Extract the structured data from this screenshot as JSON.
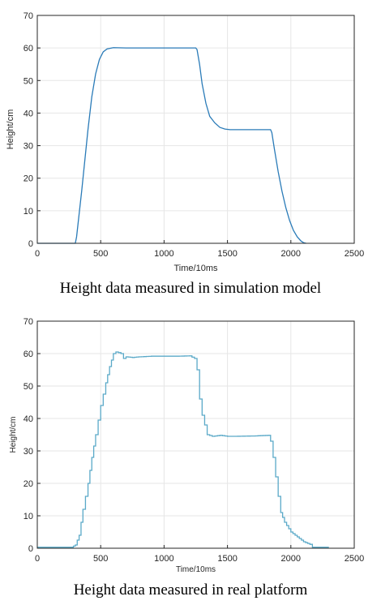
{
  "colors": {
    "line": "#2a7bb8",
    "line_real": "#5aa9c8"
  },
  "chart_data": [
    {
      "type": "line",
      "caption": "Height data measured in simulation model",
      "xlabel": "Time/10ms",
      "ylabel": "Height/cm",
      "xlim": [
        0,
        2500
      ],
      "ylim": [
        0,
        70
      ],
      "xticks": [
        0,
        500,
        1000,
        1500,
        2000,
        2500
      ],
      "yticks": [
        0,
        10,
        20,
        30,
        40,
        50,
        60,
        70
      ],
      "grid": true,
      "series": [
        {
          "x": [
            0,
            300,
            310,
            350,
            400,
            430,
            460,
            490,
            520,
            550,
            600,
            700,
            1000,
            1250,
            1260,
            1280,
            1300,
            1330,
            1360,
            1400,
            1440,
            1480,
            1520,
            1600,
            1840,
            1850,
            1870,
            1900,
            1930,
            1960,
            1990,
            2020,
            2050,
            2080,
            2100,
            2120
          ],
          "y": [
            0,
            0,
            2,
            16,
            35,
            45,
            52,
            56.5,
            58.8,
            59.7,
            60.1,
            60,
            60,
            60,
            59.5,
            55,
            49,
            43,
            39,
            37,
            35.6,
            35.1,
            34.9,
            34.9,
            34.9,
            34,
            29,
            22,
            16,
            11,
            7,
            4,
            2,
            0.7,
            0.2,
            0
          ]
        }
      ]
    },
    {
      "type": "line",
      "caption": "Height data measured in real platform",
      "xlabel": "Time/10ms",
      "ylabel": "Height/cm",
      "xlim": [
        0,
        2500
      ],
      "ylim": [
        0,
        70
      ],
      "xticks": [
        0,
        500,
        1000,
        1500,
        2000,
        2500
      ],
      "yticks": [
        0,
        10,
        20,
        30,
        40,
        50,
        60,
        70
      ],
      "grid": true,
      "series": [
        {
          "x": [
            0,
            270,
            300,
            330,
            360,
            400,
            430,
            460,
            500,
            540,
            570,
            600,
            620,
            640,
            660,
            680,
            700,
            750,
            800,
            900,
            1000,
            1100,
            1200,
            1240,
            1260,
            1280,
            1300,
            1320,
            1340,
            1380,
            1440,
            1500,
            1560,
            1700,
            1820,
            1840,
            1860,
            1880,
            1900,
            1920,
            1950,
            2000,
            2050,
            2100,
            2150,
            2170,
            2200,
            2300
          ],
          "y": [
            0.3,
            0.3,
            1,
            4,
            12,
            20,
            28,
            35,
            44,
            51,
            56,
            60,
            60.5,
            60.3,
            60,
            58.5,
            59,
            58.8,
            59,
            59.2,
            59.2,
            59.2,
            59.3,
            58.5,
            55,
            46,
            41,
            38,
            35,
            34.5,
            34.8,
            34.5,
            34.5,
            34.6,
            34.8,
            33,
            28,
            22,
            16,
            11,
            8,
            5,
            3.5,
            2,
            1.2,
            0.3,
            0.3,
            0.3
          ]
        }
      ]
    }
  ]
}
